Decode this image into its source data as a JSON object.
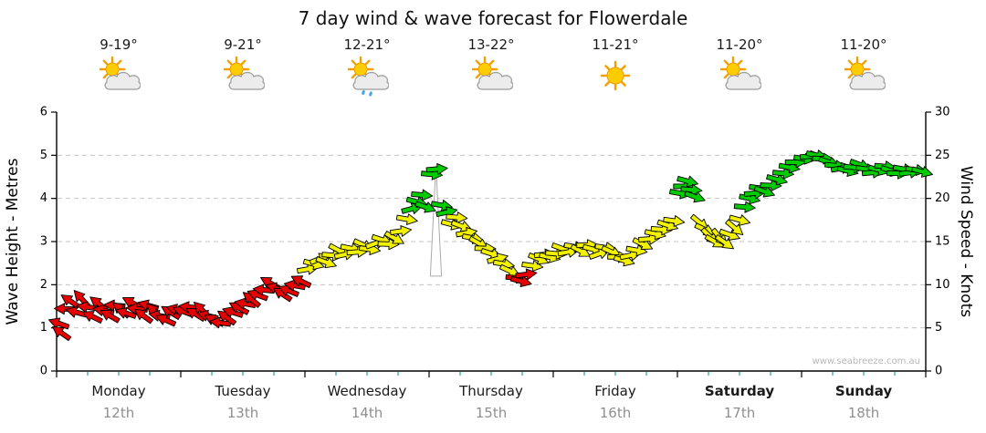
{
  "title": "7 day wind & wave forecast for Flowerdale",
  "watermark": "www.seabreeze.com.au",
  "left_axis": {
    "label": "Wave Height - Metres",
    "ticks": [
      0,
      1,
      2,
      3,
      4,
      5,
      6
    ],
    "range": [
      0,
      6
    ]
  },
  "right_axis": {
    "label": "Wind Speed - Knots",
    "ticks": [
      0,
      5,
      10,
      15,
      20,
      25,
      30
    ],
    "range": [
      0,
      30
    ]
  },
  "days": [
    {
      "name": "Monday",
      "date": "12th",
      "temp": "9-19°",
      "icon": "sun-cloud",
      "bold": false
    },
    {
      "name": "Tuesday",
      "date": "13th",
      "temp": "9-21°",
      "icon": "sun-cloud",
      "bold": false
    },
    {
      "name": "Wednesday",
      "date": "14th",
      "temp": "12-21°",
      "icon": "sun-cloud-rain",
      "bold": false
    },
    {
      "name": "Thursday",
      "date": "15th",
      "temp": "13-22°",
      "icon": "sun-cloud",
      "bold": false
    },
    {
      "name": "Friday",
      "date": "16th",
      "temp": "11-21°",
      "icon": "sun",
      "bold": false
    },
    {
      "name": "Saturday",
      "date": "17th",
      "temp": "11-20°",
      "icon": "sun-cloud",
      "bold": true
    },
    {
      "name": "Sunday",
      "date": "18th",
      "temp": "11-20°",
      "icon": "sun-cloud",
      "bold": true
    }
  ],
  "colors": {
    "red": "#E60000",
    "yellow": "#F2F200",
    "green": "#00CC00",
    "grid": "#C4C4C4",
    "axis": "#000000",
    "date_label": "#8F8F8F",
    "minor_tick": "#2FA0B8",
    "watermark": "#B8B8B8"
  },
  "legend_thresholds": {
    "red_below_knots": 11.5,
    "green_from_knots": 18
  },
  "chart_data": {
    "type": "scatter",
    "title": "7 day wind & wave forecast for Flowerdale",
    "xlabel": "Day of week (Monday 12th to Sunday 18th), x = day fraction 0-7",
    "ylabel": "Wind Speed - Knots (right axis); Wave Height - Metres (left axis, 1 m = 5 kn)",
    "ylim": [
      0,
      30
    ],
    "wave_axis_lim": [
      0,
      6
    ],
    "grid": "dashed horizontal at 5,10,15,20,25 knots",
    "legend": "arrow colour: red < 11.5 kn, yellow 11.5-18 kn, green >= 18 kn; arrow rotation = wind direction",
    "gust_marker": {
      "day": 3.055,
      "peak_knots": 23.8,
      "base_knots": 11
    },
    "series": [
      {
        "name": "wind-speed-direction-arrows",
        "format": "[day_fraction, knots, direction_deg]",
        "points": [
          [
            0.02,
            5.5,
            200
          ],
          [
            0.04,
            4.4,
            215
          ],
          [
            0.07,
            7.2,
            182
          ],
          [
            0.11,
            8.1,
            214
          ],
          [
            0.16,
            6.8,
            195
          ],
          [
            0.2,
            8.4,
            228
          ],
          [
            0.25,
            7.4,
            188
          ],
          [
            0.29,
            6.3,
            206
          ],
          [
            0.34,
            7.8,
            218
          ],
          [
            0.38,
            7.0,
            192
          ],
          [
            0.43,
            6.4,
            210
          ],
          [
            0.47,
            7.6,
            184
          ],
          [
            0.52,
            7.1,
            222
          ],
          [
            0.56,
            6.7,
            198
          ],
          [
            0.61,
            7.9,
            208
          ],
          [
            0.65,
            7.2,
            186
          ],
          [
            0.7,
            6.4,
            216
          ],
          [
            0.74,
            7.6,
            196
          ],
          [
            0.79,
            6.9,
            224
          ],
          [
            0.83,
            6.4,
            190
          ],
          [
            0.88,
            5.9,
            204
          ],
          [
            0.92,
            6.8,
            212
          ],
          [
            0.97,
            7.1,
            194
          ],
          [
            1.02,
            6.9,
            200
          ],
          [
            1.07,
            7.4,
            186
          ],
          [
            1.12,
            6.6,
            212
          ],
          [
            1.17,
            7.1,
            224
          ],
          [
            1.22,
            6.4,
            194
          ],
          [
            1.27,
            5.9,
            206
          ],
          [
            1.32,
            5.6,
            188
          ],
          [
            1.37,
            6.2,
            216
          ],
          [
            1.42,
            6.8,
            198
          ],
          [
            1.47,
            7.3,
            208
          ],
          [
            1.52,
            7.8,
            190
          ],
          [
            1.57,
            8.3,
            220
          ],
          [
            1.62,
            8.8,
            200
          ],
          [
            1.67,
            9.4,
            186
          ],
          [
            1.72,
            10.2,
            210
          ],
          [
            1.77,
            9.6,
            196
          ],
          [
            1.82,
            8.9,
            214
          ],
          [
            1.87,
            9.3,
            202
          ],
          [
            1.92,
            9.9,
            190
          ],
          [
            1.97,
            10.4,
            206
          ],
          [
            2.02,
            11.8,
            350
          ],
          [
            2.07,
            12.4,
            15
          ],
          [
            2.12,
            13.0,
            338
          ],
          [
            2.17,
            12.6,
            20
          ],
          [
            2.22,
            13.4,
            5
          ],
          [
            2.27,
            14.0,
            28
          ],
          [
            2.32,
            13.5,
            348
          ],
          [
            2.37,
            14.2,
            12
          ],
          [
            2.42,
            13.8,
            355
          ],
          [
            2.47,
            14.6,
            25
          ],
          [
            2.52,
            14.1,
            8
          ],
          [
            2.57,
            14.8,
            340
          ],
          [
            2.62,
            15.2,
            18
          ],
          [
            2.67,
            14.7,
            2
          ],
          [
            2.72,
            15.4,
            30
          ],
          [
            2.77,
            16.2,
            352
          ],
          [
            2.82,
            17.6,
            10
          ],
          [
            2.86,
            18.8,
            345
          ],
          [
            2.9,
            19.6,
            15
          ],
          [
            2.94,
            20.4,
            5
          ],
          [
            2.97,
            19.0,
            20
          ],
          [
            3.02,
            22.8,
            5
          ],
          [
            3.06,
            23.4,
            355
          ],
          [
            3.1,
            19.2,
            10
          ],
          [
            3.14,
            18.4,
            348
          ],
          [
            3.18,
            17.0,
            15
          ],
          [
            3.22,
            17.8,
            5
          ],
          [
            3.26,
            16.8,
            20
          ],
          [
            3.3,
            16.0,
            350
          ],
          [
            3.35,
            15.4,
            12
          ],
          [
            3.4,
            14.8,
            30
          ],
          [
            3.45,
            14.2,
            2
          ],
          [
            3.5,
            13.6,
            18
          ],
          [
            3.55,
            13.0,
            345
          ],
          [
            3.6,
            12.4,
            10
          ],
          [
            3.65,
            11.6,
            25
          ],
          [
            3.7,
            10.8,
            5
          ],
          [
            3.74,
            10.4,
            15
          ],
          [
            3.78,
            11.2,
            352
          ],
          [
            3.83,
            12.2,
            8
          ],
          [
            3.88,
            13.0,
            22
          ],
          [
            3.93,
            13.5,
            355
          ],
          [
            3.97,
            13.2,
            12
          ],
          [
            4.02,
            13.6,
            5
          ],
          [
            4.07,
            14.2,
            20
          ],
          [
            4.12,
            13.8,
            350
          ],
          [
            4.17,
            14.4,
            10
          ],
          [
            4.22,
            13.9,
            28
          ],
          [
            4.27,
            14.6,
            358
          ],
          [
            4.32,
            14.1,
            15
          ],
          [
            4.37,
            13.6,
            340
          ],
          [
            4.42,
            14.3,
            8
          ],
          [
            4.47,
            13.8,
            24
          ],
          [
            4.52,
            13.2,
            2
          ],
          [
            4.57,
            12.8,
            16
          ],
          [
            4.62,
            13.4,
            348
          ],
          [
            4.67,
            14.0,
            10
          ],
          [
            4.72,
            14.7,
            26
          ],
          [
            4.77,
            15.3,
            356
          ],
          [
            4.82,
            15.9,
            12
          ],
          [
            4.87,
            16.4,
            4
          ],
          [
            4.92,
            16.9,
            18
          ],
          [
            4.97,
            17.4,
            8
          ],
          [
            5.02,
            20.6,
            10
          ],
          [
            5.05,
            21.4,
            0
          ],
          [
            5.08,
            22.0,
            15
          ],
          [
            5.11,
            21.0,
            5
          ],
          [
            5.14,
            20.2,
            20
          ],
          [
            5.18,
            17.2,
            40
          ],
          [
            5.22,
            16.4,
            25
          ],
          [
            5.26,
            15.6,
            45
          ],
          [
            5.3,
            15.0,
            30
          ],
          [
            5.34,
            15.5,
            50
          ],
          [
            5.38,
            14.9,
            35
          ],
          [
            5.42,
            15.8,
            20
          ],
          [
            5.46,
            16.6,
            40
          ],
          [
            5.5,
            17.5,
            15
          ],
          [
            5.54,
            19.0,
            5
          ],
          [
            5.58,
            20.0,
            12
          ],
          [
            5.62,
            20.6,
            355
          ],
          [
            5.66,
            21.2,
            8
          ],
          [
            5.7,
            20.8,
            20
          ],
          [
            5.75,
            21.5,
            2
          ],
          [
            5.8,
            22.2,
            15
          ],
          [
            5.85,
            22.9,
            5
          ],
          [
            5.9,
            23.6,
            10
          ],
          [
            5.95,
            24.2,
            0
          ],
          [
            6.02,
            24.6,
            8
          ],
          [
            6.07,
            24.9,
            355
          ],
          [
            6.12,
            25.0,
            12
          ],
          [
            6.17,
            24.6,
            2
          ],
          [
            6.22,
            24.2,
            18
          ],
          [
            6.27,
            23.8,
            6
          ],
          [
            6.32,
            23.5,
            350
          ],
          [
            6.37,
            23.2,
            14
          ],
          [
            6.42,
            23.6,
            4
          ],
          [
            6.47,
            23.9,
            20
          ],
          [
            6.52,
            23.4,
            8
          ],
          [
            6.57,
            23.0,
            355
          ],
          [
            6.62,
            23.3,
            15
          ],
          [
            6.67,
            23.7,
            5
          ],
          [
            6.72,
            23.2,
            18
          ],
          [
            6.77,
            22.9,
            2
          ],
          [
            6.82,
            23.4,
            10
          ],
          [
            6.87,
            23.0,
            352
          ],
          [
            6.92,
            23.3,
            8
          ],
          [
            6.97,
            23.1,
            15
          ]
        ]
      }
    ]
  }
}
